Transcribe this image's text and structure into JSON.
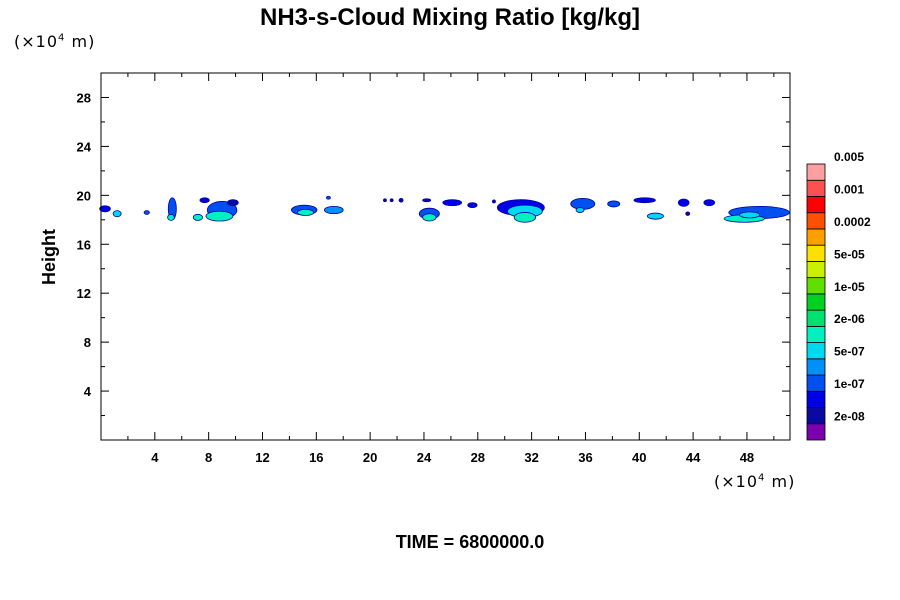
{
  "chart_data": {
    "type": "heatmap",
    "title": "NH3-s-Cloud Mixing Ratio [kg/kg]",
    "ylabel": "Height",
    "x_unit_prefix": "(×10",
    "x_unit_exp": "4",
    "x_unit_suffix": " m)",
    "y_unit_prefix": "(×10",
    "y_unit_exp": "4",
    "y_unit_suffix": " m)",
    "xlim": [
      0,
      51.2
    ],
    "ylim": [
      0,
      30
    ],
    "x_ticks": [
      4,
      8,
      12,
      16,
      20,
      24,
      28,
      32,
      36,
      40,
      44,
      48
    ],
    "x_tick_labels": [
      "4",
      "8",
      "12",
      "16",
      "20",
      "24",
      "28",
      "32",
      "36",
      "40",
      "44",
      "48"
    ],
    "y_ticks": [
      4,
      8,
      12,
      16,
      20,
      24,
      28
    ],
    "y_tick_labels": [
      "4",
      "8",
      "12",
      "16",
      "20",
      "24",
      "28"
    ],
    "colorbar": {
      "colors": [
        "#7a00b0",
        "#0a0aa0",
        "#0000e6",
        "#0050f0",
        "#0090f8",
        "#00d8f0",
        "#00f0c0",
        "#00e070",
        "#00d020",
        "#60e000",
        "#c8f000",
        "#ffe000",
        "#ffa000",
        "#ff5000",
        "#ff0000",
        "#ff5050",
        "#ffa0a0"
      ],
      "labels": [
        "2e-08",
        "1e-07",
        "5e-07",
        "2e-06",
        "1e-05",
        "5e-05",
        "0.0002",
        "0.001",
        "0.005"
      ]
    },
    "cloud_patches": [
      {
        "x": 0.3,
        "y": 18.9,
        "w": 0.8,
        "h": 0.5,
        "level": 2
      },
      {
        "x": 1.2,
        "y": 18.5,
        "w": 0.6,
        "h": 0.5,
        "level": 5
      },
      {
        "x": 3.4,
        "y": 18.6,
        "w": 0.4,
        "h": 0.3,
        "level": 3
      },
      {
        "x": 5.3,
        "y": 18.9,
        "w": 0.6,
        "h": 1.8,
        "level": 3
      },
      {
        "x": 5.2,
        "y": 18.2,
        "w": 0.5,
        "h": 0.5,
        "level": 6
      },
      {
        "x": 7.2,
        "y": 18.2,
        "w": 0.7,
        "h": 0.5,
        "level": 6
      },
      {
        "x": 7.7,
        "y": 19.6,
        "w": 0.7,
        "h": 0.4,
        "level": 2
      },
      {
        "x": 9.0,
        "y": 18.8,
        "w": 2.2,
        "h": 1.4,
        "level": 3
      },
      {
        "x": 8.8,
        "y": 18.3,
        "w": 2.0,
        "h": 0.8,
        "level": 6
      },
      {
        "x": 9.8,
        "y": 19.4,
        "w": 0.8,
        "h": 0.5,
        "level": 1
      },
      {
        "x": 15.1,
        "y": 18.8,
        "w": 1.9,
        "h": 0.8,
        "level": 3
      },
      {
        "x": 15.2,
        "y": 18.6,
        "w": 1.2,
        "h": 0.5,
        "level": 6
      },
      {
        "x": 17.3,
        "y": 18.8,
        "w": 1.4,
        "h": 0.6,
        "level": 4
      },
      {
        "x": 16.9,
        "y": 19.8,
        "w": 0.3,
        "h": 0.2,
        "level": 3
      },
      {
        "x": 21.1,
        "y": 19.6,
        "w": 0.2,
        "h": 0.2,
        "level": 1
      },
      {
        "x": 21.6,
        "y": 19.6,
        "w": 0.2,
        "h": 0.2,
        "level": 1
      },
      {
        "x": 22.3,
        "y": 19.6,
        "w": 0.3,
        "h": 0.3,
        "level": 1
      },
      {
        "x": 24.4,
        "y": 18.5,
        "w": 1.5,
        "h": 0.9,
        "level": 3
      },
      {
        "x": 24.4,
        "y": 18.2,
        "w": 1.0,
        "h": 0.6,
        "level": 6
      },
      {
        "x": 24.2,
        "y": 19.6,
        "w": 0.6,
        "h": 0.2,
        "level": 1
      },
      {
        "x": 26.1,
        "y": 19.4,
        "w": 1.4,
        "h": 0.5,
        "level": 2
      },
      {
        "x": 27.6,
        "y": 19.2,
        "w": 0.7,
        "h": 0.4,
        "level": 2
      },
      {
        "x": 29.2,
        "y": 19.5,
        "w": 0.2,
        "h": 0.2,
        "level": 1
      },
      {
        "x": 31.2,
        "y": 19.0,
        "w": 3.5,
        "h": 1.3,
        "level": 2
      },
      {
        "x": 31.5,
        "y": 18.7,
        "w": 2.6,
        "h": 1.0,
        "level": 5
      },
      {
        "x": 31.5,
        "y": 18.2,
        "w": 1.6,
        "h": 0.8,
        "level": 6
      },
      {
        "x": 35.8,
        "y": 19.3,
        "w": 1.8,
        "h": 0.9,
        "level": 3
      },
      {
        "x": 35.6,
        "y": 18.8,
        "w": 0.6,
        "h": 0.4,
        "level": 5
      },
      {
        "x": 38.1,
        "y": 19.3,
        "w": 0.9,
        "h": 0.5,
        "level": 3
      },
      {
        "x": 40.4,
        "y": 19.6,
        "w": 1.6,
        "h": 0.4,
        "level": 2
      },
      {
        "x": 41.2,
        "y": 18.3,
        "w": 1.2,
        "h": 0.5,
        "level": 5
      },
      {
        "x": 43.3,
        "y": 19.4,
        "w": 0.8,
        "h": 0.6,
        "level": 2
      },
      {
        "x": 43.6,
        "y": 18.5,
        "w": 0.3,
        "h": 0.3,
        "level": 1
      },
      {
        "x": 45.2,
        "y": 19.4,
        "w": 0.8,
        "h": 0.5,
        "level": 2
      },
      {
        "x": 48.9,
        "y": 18.6,
        "w": 4.5,
        "h": 1.0,
        "level": 3
      },
      {
        "x": 47.8,
        "y": 18.1,
        "w": 3.0,
        "h": 0.6,
        "level": 6
      },
      {
        "x": 48.2,
        "y": 18.4,
        "w": 1.5,
        "h": 0.5,
        "level": 5
      }
    ]
  },
  "time_label": "TIME = 6800000.0"
}
